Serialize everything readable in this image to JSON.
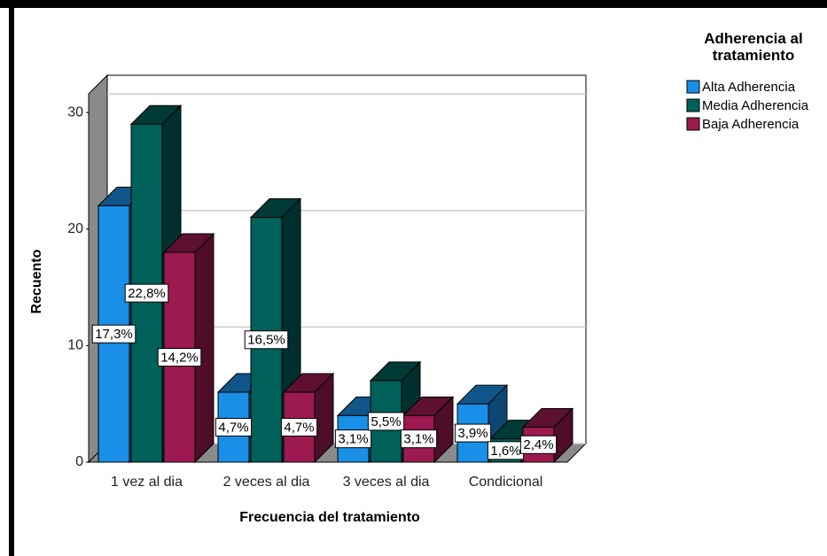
{
  "chart_data": {
    "type": "bar3d",
    "x_label": "Frecuencia del tratamiento",
    "y_label": "Recuento",
    "legend_title": "Adherencia al tratamiento",
    "categories": [
      "1 vez al dia",
      "2 veces al dia",
      "3 veces al dia",
      "Condicional"
    ],
    "series": [
      {
        "name": "Alta Adherencia",
        "color": "#1a8fe8",
        "values": [
          22,
          6,
          4,
          5
        ],
        "value_labels": [
          "17,3%",
          "4,7%",
          "3,1%",
          "3,9%"
        ]
      },
      {
        "name": "Media Adherencia",
        "color": "#00605a",
        "values": [
          29,
          21,
          7,
          2
        ],
        "value_labels": [
          "22,8%",
          "16,5%",
          "5,5%",
          "1,6%"
        ]
      },
      {
        "name": "Baja Adherencia",
        "color": "#9c1a50",
        "values": [
          18,
          6,
          4,
          3
        ],
        "value_labels": [
          "14,2%",
          "4,7%",
          "3,1%",
          "2,4%"
        ]
      }
    ],
    "ylim": [
      0,
      31.6
    ],
    "yticks": [
      0,
      10,
      20,
      30
    ],
    "grid": true,
    "legend": "right"
  }
}
